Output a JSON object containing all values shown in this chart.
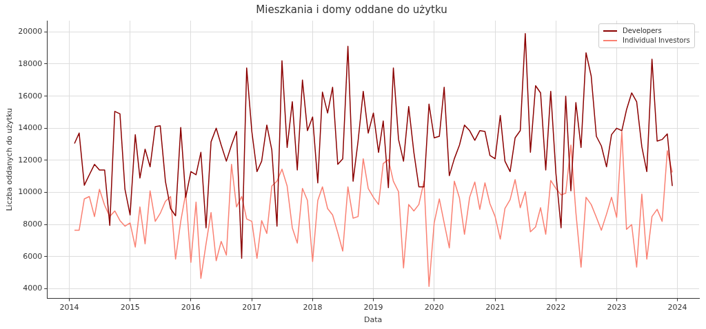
{
  "chart_data": {
    "type": "line",
    "title": "Mieszkania i domy oddane do użytku",
    "xlabel": "Data",
    "ylabel": "Liczba oddanych do użytku",
    "x": [
      "2014-02",
      "2014-03",
      "2014-04",
      "2014-05",
      "2014-06",
      "2014-07",
      "2014-08",
      "2014-09",
      "2014-10",
      "2014-11",
      "2014-12",
      "2015-01",
      "2015-02",
      "2015-03",
      "2015-04",
      "2015-05",
      "2015-06",
      "2015-07",
      "2015-08",
      "2015-09",
      "2015-10",
      "2015-11",
      "2015-12",
      "2016-01",
      "2016-02",
      "2016-03",
      "2016-04",
      "2016-05",
      "2016-06",
      "2016-07",
      "2016-08",
      "2016-09",
      "2016-10",
      "2016-11",
      "2016-12",
      "2017-01",
      "2017-02",
      "2017-03",
      "2017-04",
      "2017-05",
      "2017-06",
      "2017-07",
      "2017-08",
      "2017-09",
      "2017-10",
      "2017-11",
      "2017-12",
      "2018-01",
      "2018-02",
      "2018-03",
      "2018-04",
      "2018-05",
      "2018-06",
      "2018-07",
      "2018-08",
      "2018-09",
      "2018-10",
      "2018-11",
      "2018-12",
      "2019-01",
      "2019-02",
      "2019-03",
      "2019-04",
      "2019-05",
      "2019-06",
      "2019-07",
      "2019-08",
      "2019-09",
      "2019-10",
      "2019-11",
      "2019-12",
      "2020-01",
      "2020-02",
      "2020-03",
      "2020-04",
      "2020-05",
      "2020-06",
      "2020-07",
      "2020-08",
      "2020-09",
      "2020-10",
      "2020-11",
      "2020-12",
      "2021-01",
      "2021-02",
      "2021-03",
      "2021-04",
      "2021-05",
      "2021-06",
      "2021-07",
      "2021-08",
      "2021-09",
      "2021-10",
      "2021-11",
      "2021-12",
      "2022-01",
      "2022-02",
      "2022-03",
      "2022-04",
      "2022-05",
      "2022-06",
      "2022-07",
      "2022-08",
      "2022-09",
      "2022-10",
      "2022-11",
      "2022-12",
      "2023-01",
      "2023-02",
      "2023-03",
      "2023-04",
      "2023-05",
      "2023-06",
      "2023-07",
      "2023-08",
      "2023-09",
      "2023-10",
      "2023-11",
      "2023-12"
    ],
    "series": [
      {
        "name": "Developers",
        "color": "#8b0000",
        "values": [
          13050,
          13700,
          10450,
          11100,
          11750,
          11400,
          11400,
          7950,
          15050,
          14900,
          10200,
          8600,
          13600,
          10900,
          12700,
          11600,
          14100,
          14150,
          10700,
          9000,
          8550,
          14050,
          9700,
          11300,
          11100,
          12500,
          7800,
          13150,
          14000,
          12950,
          11950,
          12950,
          13800,
          5900,
          17750,
          13800,
          11300,
          11950,
          14200,
          12650,
          7900,
          18200,
          12800,
          15650,
          11400,
          17000,
          13850,
          14700,
          10600,
          16250,
          14950,
          16550,
          11750,
          12100,
          19100,
          10700,
          13200,
          16300,
          13700,
          14950,
          12500,
          14450,
          10300,
          17750,
          13300,
          11950,
          15350,
          12500,
          10350,
          10350,
          15500,
          13400,
          13500,
          16550,
          11050,
          12100,
          12950,
          14200,
          13850,
          13250,
          13850,
          13800,
          12300,
          12100,
          14800,
          11950,
          11300,
          13400,
          13850,
          19900,
          12500,
          16650,
          16200,
          11400,
          16300,
          11200,
          7800,
          16000,
          10100,
          15600,
          12800,
          18700,
          17250,
          13500,
          12900,
          11600,
          13600,
          14000,
          13850,
          15150,
          16200,
          15650,
          12850,
          11300,
          18300,
          13200,
          13300,
          13650,
          10400
        ]
      },
      {
        "name": "Individual Investors",
        "color": "#fa8072",
        "values": [
          7650,
          7650,
          9600,
          9750,
          8500,
          10200,
          9200,
          8500,
          8850,
          8250,
          7900,
          8100,
          6600,
          9100,
          6800,
          10100,
          8200,
          8700,
          9450,
          9750,
          5850,
          8200,
          9950,
          5650,
          9400,
          4650,
          6800,
          8750,
          5750,
          6950,
          6100,
          11750,
          9100,
          9750,
          8350,
          8200,
          5900,
          8250,
          7450,
          10400,
          10700,
          11450,
          10400,
          7800,
          6850,
          10250,
          9500,
          5700,
          9500,
          10350,
          9000,
          8600,
          7500,
          6350,
          10350,
          8400,
          8500,
          12100,
          10250,
          9700,
          9250,
          11800,
          12050,
          10700,
          10050,
          5300,
          9250,
          8850,
          9250,
          10700,
          4150,
          8100,
          9600,
          8100,
          6550,
          10700,
          9650,
          7400,
          9700,
          10650,
          8950,
          10600,
          9300,
          8500,
          7100,
          9000,
          9550,
          10800,
          9050,
          10050,
          7550,
          7850,
          9050,
          7400,
          10750,
          10250,
          9850,
          9950,
          12950,
          8750,
          5350,
          9700,
          9250,
          8450,
          7650,
          8650,
          9700,
          8450,
          13800,
          7700,
          8000,
          5350,
          9900,
          5850,
          8500,
          8950,
          8200,
          12600,
          11250
        ]
      }
    ],
    "xlim": [
      "2013-08-20",
      "2024-05-10"
    ],
    "xticks": [
      "2014",
      "2015",
      "2016",
      "2017",
      "2018",
      "2019",
      "2020",
      "2021",
      "2022",
      "2023",
      "2024"
    ],
    "ylim": [
      3400,
      20700
    ],
    "yticks": [
      4000,
      6000,
      8000,
      10000,
      12000,
      14000,
      16000,
      18000,
      20000
    ],
    "grid": true,
    "legend": "top right",
    "marker": "none",
    "line_style": "solid"
  }
}
